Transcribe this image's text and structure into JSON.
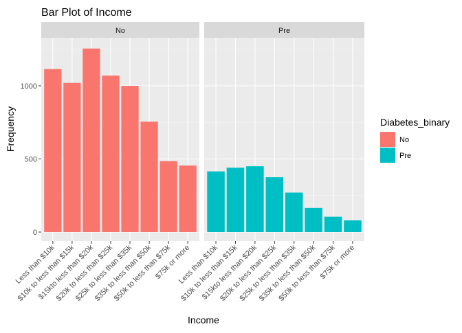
{
  "chart_data": {
    "type": "bar",
    "title": "Bar Plot of Income",
    "xlabel": "Income",
    "ylabel": "Frequency",
    "ylim": [
      0,
      1350
    ],
    "yticks": [
      0,
      500,
      1000
    ],
    "categories": [
      "Less than $10k",
      "$10k to less than $15k",
      "$15kto less than $20k",
      "$20k to less than $25k",
      "$25k to less than $35k",
      "$35k to less than $50k",
      "$50k to less than $75k",
      "$75k or more"
    ],
    "facets": [
      {
        "label": "No",
        "color": "#F8766D",
        "values": [
          1115,
          1020,
          1255,
          1070,
          1000,
          755,
          485,
          455
        ]
      },
      {
        "label": "Pre",
        "color": "#00BFC4",
        "values": [
          415,
          440,
          450,
          375,
          270,
          165,
          105,
          80
        ]
      }
    ],
    "legend": {
      "title": "Diabetes_binary",
      "position": "right",
      "items": [
        {
          "label": "No",
          "color": "#F8766D"
        },
        {
          "label": "Pre",
          "color": "#00BFC4"
        }
      ]
    },
    "grid": true
  }
}
